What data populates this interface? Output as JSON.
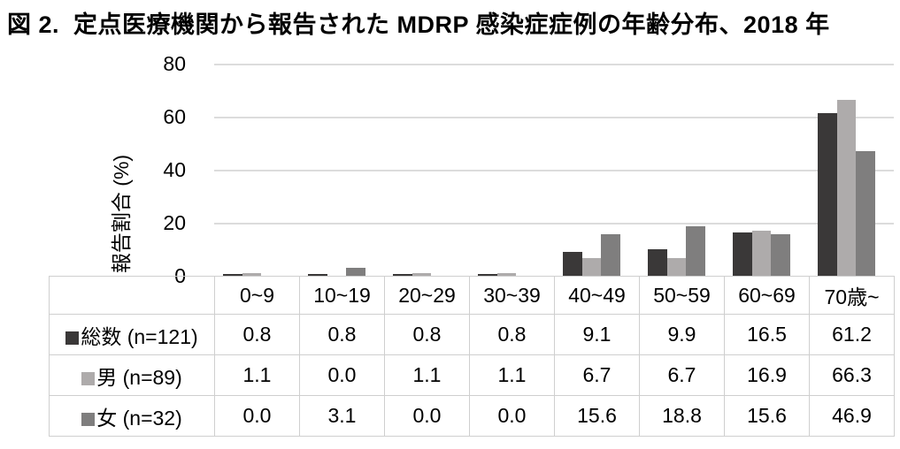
{
  "chart_data": {
    "type": "bar",
    "title": "図 2.  定点医療機関から報告された MDRP 感染症症例の年齢分布、2018 年",
    "ylabel": "報告割合 (%)",
    "categories": [
      "0~9",
      "10~19",
      "20~29",
      "30~39",
      "40~49",
      "50~59",
      "60~69",
      "70歳~"
    ],
    "series": [
      {
        "name": "総数 (n=121)",
        "color": "#3a3838",
        "values": [
          0.8,
          0.8,
          0.8,
          0.8,
          9.1,
          9.9,
          16.5,
          61.2
        ]
      },
      {
        "name": "男 (n=89)",
        "color": "#aeabab",
        "values": [
          1.1,
          0.0,
          1.1,
          1.1,
          6.7,
          6.7,
          16.9,
          66.3
        ]
      },
      {
        "name": "女 (n=32)",
        "color": "#7f7e7e",
        "values": [
          0.0,
          3.1,
          0.0,
          0.0,
          15.6,
          18.8,
          15.6,
          46.9
        ]
      }
    ],
    "yticks": [
      0,
      20,
      40,
      60,
      80
    ],
    "ylim": [
      0,
      80
    ],
    "grid": true,
    "legend_position": "table-left-column",
    "value_decimals": 1
  },
  "colors": {
    "gridline": "#dcdcdc",
    "table_border": "#cfcfcf",
    "text": "#000000",
    "background": "#ffffff"
  }
}
